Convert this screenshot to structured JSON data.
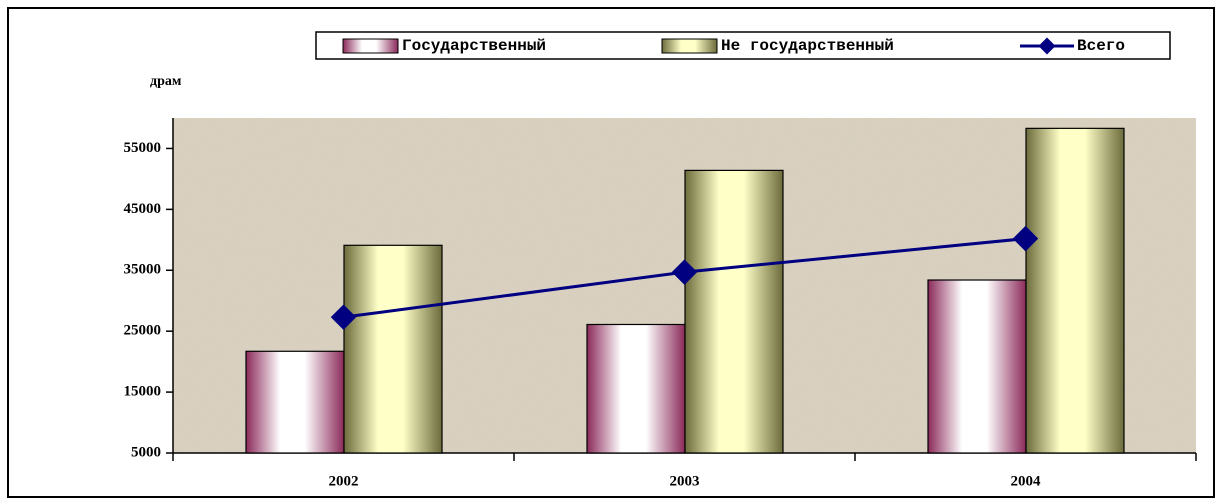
{
  "chart_data": {
    "type": "bar",
    "y_label": "драм",
    "categories": [
      "2002",
      "2003",
      "2004"
    ],
    "series": [
      {
        "name": "Государственный",
        "type": "bar",
        "color": "#8b2a5a",
        "values": [
          21700,
          26100,
          33400
        ]
      },
      {
        "name": "Не государственный",
        "type": "bar",
        "color": "#6b6b3c",
        "values": [
          39100,
          51400,
          58300
        ]
      },
      {
        "name": "Всего",
        "type": "line",
        "color": "#000080",
        "values": [
          27300,
          34700,
          40200
        ]
      }
    ],
    "ylim": [
      5000,
      60000
    ],
    "yticks": [
      5000,
      15000,
      25000,
      35000,
      45000,
      55000
    ]
  }
}
